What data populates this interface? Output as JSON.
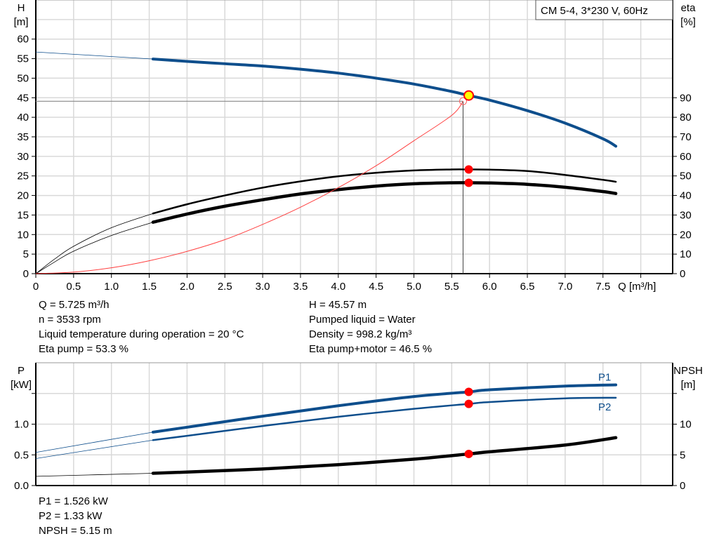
{
  "chart_data": [
    {
      "type": "line",
      "title": "CM 5-4, 3*230 V, 60Hz",
      "xlabel": "Q [m³/h]",
      "ylabel": "H [m]",
      "ylabel_lines": [
        "H",
        "[m]"
      ],
      "y2label_lines": [
        "eta",
        "[%]"
      ],
      "xlim": [
        0,
        8.4
      ],
      "ylim": [
        0,
        70
      ],
      "y2lim": [
        0,
        140
      ],
      "xticks": [
        "0",
        "0.5",
        "1.0",
        "1.5",
        "2.0",
        "2.5",
        "3.0",
        "3.5",
        "4.0",
        "4.5",
        "5.0",
        "5.5",
        "6.0",
        "6.5",
        "7.0",
        "7.5"
      ],
      "yticks": [
        "0",
        "5",
        "10",
        "15",
        "20",
        "25",
        "30",
        "35",
        "40",
        "45",
        "50",
        "55",
        "60"
      ],
      "y2ticks": [
        "0",
        "10",
        "20",
        "30",
        "40",
        "50",
        "60",
        "70",
        "80",
        "90"
      ],
      "grid": true,
      "series": [
        {
          "id": "H",
          "axis": "y",
          "color": "#0e4e8c",
          "x": [
            0,
            1.55,
            2,
            2.5,
            3,
            3.5,
            4,
            4.5,
            5,
            5.5,
            5.725,
            6,
            6.5,
            7,
            7.5,
            7.67
          ],
          "y": [
            56.7,
            54.9,
            54.3,
            53.7,
            53.1,
            52.3,
            51.3,
            50.0,
            48.5,
            46.6,
            45.57,
            44.4,
            41.7,
            38.5,
            34.5,
            32.6
          ]
        },
        {
          "id": "eta-pump",
          "axis": "y2",
          "color": "#000000",
          "x": [
            0,
            0.25,
            0.5,
            1,
            1.55,
            2,
            2.5,
            3,
            3.5,
            4,
            4.5,
            5,
            5.5,
            5.725,
            6,
            6.5,
            7,
            7.5,
            7.67
          ],
          "y": [
            0,
            7.5,
            14,
            23.5,
            30.8,
            35.5,
            40,
            44,
            47.2,
            49.8,
            51.6,
            52.8,
            53.3,
            53.3,
            53.2,
            52.5,
            50.5,
            48,
            47
          ]
        },
        {
          "id": "eta-pump-motor",
          "axis": "y2",
          "color": "#000000",
          "x": [
            0,
            0.25,
            0.5,
            1,
            1.55,
            2,
            2.5,
            3,
            3.5,
            4,
            4.5,
            5,
            5.5,
            5.725,
            6,
            6.5,
            7,
            7.5,
            7.67
          ],
          "y": [
            0,
            6,
            11.5,
            19.5,
            26.3,
            30.5,
            34.5,
            37.8,
            40.8,
            43,
            44.8,
            46,
            46.5,
            46.5,
            46.4,
            45.7,
            44.2,
            42,
            41
          ]
        },
        {
          "id": "system-curve",
          "axis": "y",
          "color": "#ff4040",
          "x": [
            0,
            0.5,
            1,
            1.5,
            2,
            2.5,
            3,
            3.5,
            4,
            4.5,
            5,
            5.5,
            5.65
          ],
          "y": [
            0,
            0.4,
            1.5,
            3.3,
            5.7,
            8.7,
            12.6,
            17,
            22,
            27.6,
            34,
            40.5,
            44.1
          ]
        }
      ],
      "operating_point": {
        "Q": 5.725,
        "H": 45.57,
        "eta_pump": 53.3,
        "eta_pump_motor": 46.5
      },
      "duty_point": {
        "Q": 5.65,
        "H": 44.1
      }
    },
    {
      "type": "line",
      "ylabel_lines": [
        "P",
        "[kW]"
      ],
      "y2label_lines": [
        "NPSH",
        "[m]"
      ],
      "xlim": [
        0,
        8.4
      ],
      "ylim": [
        0,
        2.0
      ],
      "y2lim": [
        0,
        20
      ],
      "yticks": [
        "0.0",
        "0.5",
        "1.0"
      ],
      "y2ticks": [
        "0",
        "5",
        "10"
      ],
      "grid": true,
      "series": [
        {
          "id": "P1",
          "name": "P1",
          "axis": "y",
          "color": "#0e4e8c",
          "x": [
            0,
            1.55,
            2,
            3,
            4,
            5,
            5.725,
            6,
            7,
            7.67
          ],
          "y": [
            0.54,
            0.87,
            0.95,
            1.13,
            1.3,
            1.45,
            1.526,
            1.56,
            1.62,
            1.64
          ]
        },
        {
          "id": "P2",
          "name": "P2",
          "axis": "y",
          "color": "#0e4e8c",
          "x": [
            0,
            1.55,
            2,
            3,
            4,
            5,
            5.725,
            6,
            7,
            7.67
          ],
          "y": [
            0.44,
            0.74,
            0.81,
            0.97,
            1.12,
            1.25,
            1.33,
            1.36,
            1.42,
            1.43
          ]
        },
        {
          "id": "NPSH",
          "axis": "y2",
          "color": "#000000",
          "x": [
            0,
            1.55,
            2,
            3,
            4,
            5,
            5.725,
            6,
            7,
            7.67
          ],
          "y": [
            1.5,
            2.0,
            2.2,
            2.7,
            3.4,
            4.3,
            5.15,
            5.5,
            6.6,
            7.8
          ]
        }
      ],
      "operating_point": {
        "Q": 5.725,
        "P1": 1.526,
        "P2": 1.33,
        "NPSH": 5.15
      }
    }
  ],
  "info": {
    "left": [
      "Q = 5.725 m³/h",
      "n = 3533 rpm",
      "Liquid temperature during operation = 20 °C",
      "Eta pump = 53.3 %"
    ],
    "right": [
      "H = 45.57 m",
      "Pumped liquid = Water",
      "Density = 998.2 kg/m³",
      "Eta pump+motor = 46.5 %"
    ],
    "bottom": [
      "P1 = 1.526 kW",
      "P2 = 1.33 kW",
      "NPSH = 5.15 m"
    ]
  },
  "colors": {
    "curve_blue": "#0e4e8c",
    "marker_red": "#ff0000",
    "operating_yellow": "#ffff00",
    "grid": "#d9d9d9"
  }
}
